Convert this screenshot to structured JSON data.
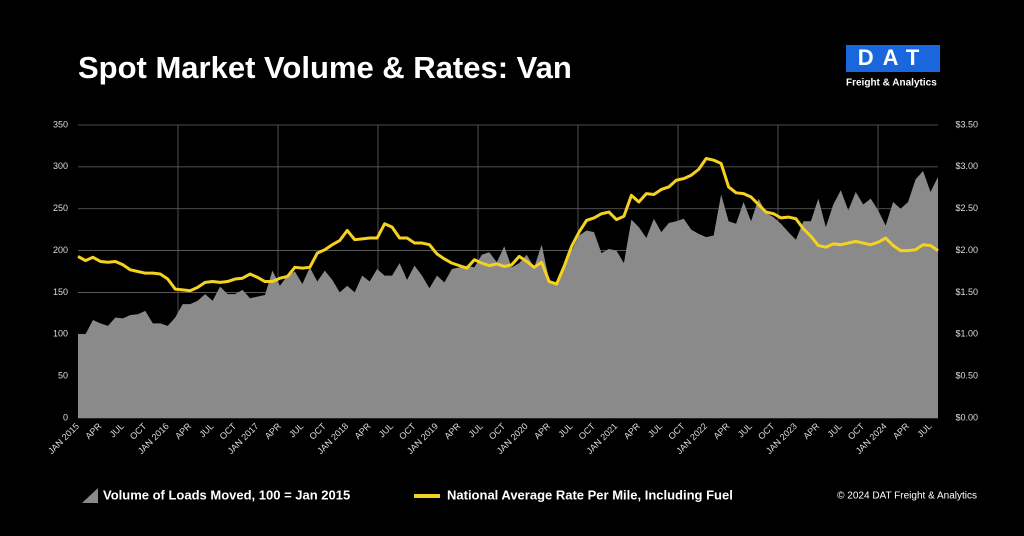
{
  "chart_data": {
    "type": "area_line",
    "title": "Spot Market Volume & Rates: Van",
    "logo_text": "DAT",
    "logo_subtitle": "Freight & Analytics",
    "source": "© 2024 DAT Freight & Analytics",
    "categories": [
      "JAN 2015",
      null,
      null,
      "APR",
      null,
      null,
      "JUL",
      null,
      null,
      "OCT",
      null,
      null,
      "JAN 2016",
      null,
      null,
      "APR",
      null,
      null,
      "JUL",
      null,
      null,
      "OCT",
      null,
      null,
      "JAN 2017",
      null,
      null,
      "APR",
      null,
      null,
      "JUL",
      null,
      null,
      "OCT",
      null,
      null,
      "JAN 2018",
      null,
      null,
      "APR",
      null,
      null,
      "JUL",
      null,
      null,
      "OCT",
      null,
      null,
      "JAN 2019",
      null,
      null,
      "APR",
      null,
      null,
      "JUL",
      null,
      null,
      "OCT",
      null,
      null,
      "JAN 2020",
      null,
      null,
      "APR",
      null,
      null,
      "JUL",
      null,
      null,
      "OCT",
      null,
      null,
      "JAN 2021",
      null,
      null,
      "APR",
      null,
      null,
      "JUL",
      null,
      null,
      "OCT",
      null,
      null,
      "JAN 2022",
      null,
      null,
      "APR",
      null,
      null,
      "JUL",
      null,
      null,
      "OCT",
      null,
      null,
      "JAN 2023",
      null,
      null,
      "APR",
      null,
      null,
      "JUL",
      null,
      null,
      "OCT",
      null,
      null,
      "JAN 2024",
      null,
      null,
      "APR",
      null,
      null,
      "JUL",
      null
    ],
    "series": [
      {
        "name": "Volume of Loads Moved, 100 = Jan 2015",
        "type": "area",
        "color": "#8a8a8a",
        "values": [
          100,
          100,
          117,
          113,
          110,
          120,
          119,
          123,
          124,
          128,
          113,
          113,
          110,
          120,
          136,
          136,
          140,
          148,
          140,
          157,
          148,
          148,
          153,
          143,
          145,
          147,
          176,
          158,
          170,
          175,
          160,
          180,
          163,
          176,
          165,
          150,
          158,
          150,
          170,
          163,
          178,
          170,
          170,
          185,
          165,
          182,
          170,
          155,
          170,
          162,
          178,
          180,
          182,
          180,
          195,
          198,
          186,
          205,
          180,
          185,
          195,
          180,
          207,
          165,
          160,
          185,
          200,
          218,
          224,
          222,
          197,
          202,
          200,
          185,
          237,
          228,
          215,
          238,
          222,
          233,
          235,
          238,
          225,
          220,
          216,
          218,
          267,
          235,
          232,
          258,
          235,
          262,
          245,
          240,
          232,
          222,
          213,
          235,
          235,
          262,
          228,
          255,
          272,
          248,
          270,
          255,
          262,
          248,
          230,
          258,
          250,
          258,
          285,
          295,
          270,
          288
        ]
      },
      {
        "name": "National Average Rate Per Mile, Including Fuel",
        "type": "line",
        "axis": "y2",
        "color": "#f5d21f",
        "values": [
          1.93,
          1.88,
          1.92,
          1.87,
          1.86,
          1.87,
          1.83,
          1.77,
          1.75,
          1.73,
          1.73,
          1.72,
          1.66,
          1.54,
          1.53,
          1.52,
          1.56,
          1.62,
          1.63,
          1.62,
          1.63,
          1.66,
          1.67,
          1.72,
          1.68,
          1.63,
          1.63,
          1.67,
          1.69,
          1.8,
          1.79,
          1.8,
          1.97,
          2.01,
          2.07,
          2.12,
          2.24,
          2.13,
          2.14,
          2.15,
          2.15,
          2.32,
          2.28,
          2.15,
          2.15,
          2.09,
          2.09,
          2.07,
          1.96,
          1.9,
          1.85,
          1.82,
          1.79,
          1.89,
          1.85,
          1.82,
          1.84,
          1.81,
          1.83,
          1.93,
          1.87,
          1.8,
          1.86,
          1.63,
          1.6,
          1.81,
          2.05,
          2.22,
          2.36,
          2.39,
          2.44,
          2.46,
          2.37,
          2.41,
          2.66,
          2.58,
          2.68,
          2.67,
          2.73,
          2.76,
          2.84,
          2.86,
          2.9,
          2.97,
          3.1,
          3.08,
          3.04,
          2.76,
          2.69,
          2.68,
          2.64,
          2.55,
          2.46,
          2.44,
          2.39,
          2.4,
          2.38,
          2.26,
          2.17,
          2.06,
          2.04,
          2.08,
          2.07,
          2.09,
          2.11,
          2.09,
          2.07,
          2.1,
          2.15,
          2.06,
          2.0,
          2.0,
          2.01,
          2.07,
          2.06,
          2.0
        ]
      }
    ],
    "ylim": [
      0,
      350
    ],
    "yticks": [
      0,
      50,
      100,
      150,
      200,
      250,
      300,
      350
    ],
    "y2lim": [
      0,
      3.5
    ],
    "y2ticks": [
      {
        "value": 0,
        "label": "$0.00"
      },
      {
        "value": 0.5,
        "label": "$0.50"
      },
      {
        "value": 1,
        "label": "$1.00"
      },
      {
        "value": 1.5,
        "label": "$1.50"
      },
      {
        "value": 2,
        "label": "$2.00"
      },
      {
        "value": 2.5,
        "label": "$2.50"
      },
      {
        "value": 3,
        "label": "$3.00"
      },
      {
        "value": 3.5,
        "label": "$3.50"
      }
    ],
    "grid": true
  }
}
